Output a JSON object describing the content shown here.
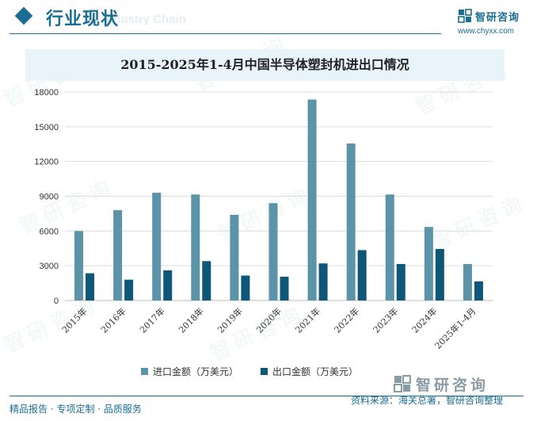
{
  "header": {
    "title": "行业现状",
    "ghost_text": "Industry Chain"
  },
  "brand": {
    "name": "智研咨询",
    "url": "www.chyxx.com"
  },
  "watermark": "智研咨询",
  "chart_data": {
    "type": "bar",
    "title": "2015-2025年1-4月中国半导体塑封机进出口情况",
    "xlabel": "",
    "ylabel": "",
    "categories": [
      "2015年",
      "2016年",
      "2017年",
      "2018年",
      "2019年",
      "2020年",
      "2021年",
      "2022年",
      "2023年",
      "2024年",
      "2025年1-4月"
    ],
    "series": [
      {
        "name": "进口金额（万美元）",
        "color": "#5b93a8",
        "values": [
          6000,
          7800,
          9300,
          9150,
          7400,
          8400,
          17350,
          13550,
          9150,
          6350,
          3150
        ]
      },
      {
        "name": "出口金额（万美元）",
        "color": "#0e5779",
        "values": [
          2350,
          1800,
          2600,
          3400,
          2150,
          2050,
          3200,
          4350,
          3150,
          4450,
          1650
        ]
      }
    ],
    "ylim": [
      0,
      18000
    ],
    "yticks": [
      0,
      3000,
      6000,
      9000,
      12000,
      15000,
      18000
    ],
    "grid": true,
    "legend": "bottom"
  },
  "footer": {
    "left": "精品报告 · 专项定制 · 品质服务",
    "right": "资料来源：海关总署，智研咨询整理",
    "logo_text": "智研咨询"
  }
}
